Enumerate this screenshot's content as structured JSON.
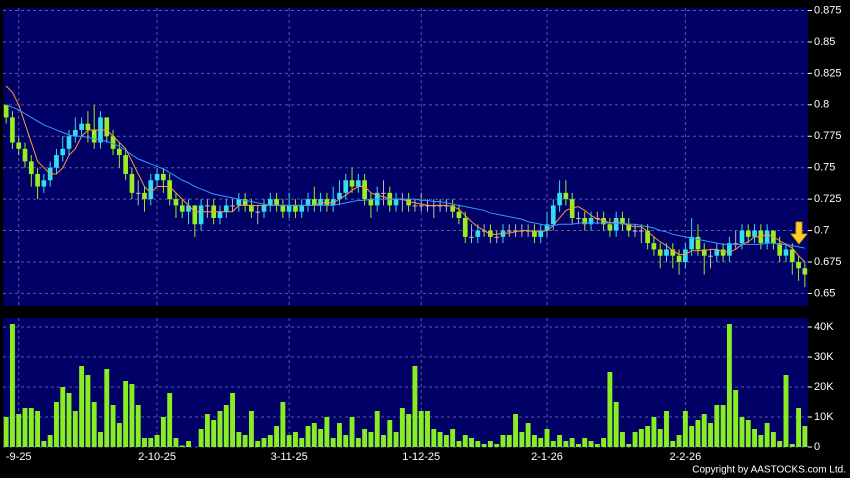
{
  "chart_data": {
    "type": "candlestick",
    "up_color": "#33ddee",
    "down_color": "#99ee22",
    "flat_color": "#bbbbbb",
    "categories": [
      null,
      null,
      "-9-25",
      null,
      null,
      null,
      null,
      null,
      null,
      null,
      null,
      null,
      null,
      null,
      null,
      null,
      null,
      null,
      null,
      null,
      null,
      null,
      null,
      null,
      "2-10-25",
      null,
      null,
      null,
      null,
      null,
      null,
      null,
      null,
      null,
      null,
      null,
      null,
      null,
      null,
      null,
      null,
      null,
      null,
      null,
      null,
      "3-11-25",
      null,
      null,
      null,
      null,
      null,
      null,
      null,
      null,
      null,
      null,
      null,
      null,
      null,
      null,
      null,
      null,
      null,
      null,
      null,
      null,
      "1-12-25",
      null,
      null,
      null,
      null,
      null,
      null,
      null,
      null,
      null,
      null,
      null,
      null,
      null,
      null,
      null,
      null,
      null,
      null,
      null,
      "2-1-26",
      null,
      null,
      null,
      null,
      null,
      null,
      null,
      null,
      null,
      null,
      null,
      null,
      null,
      null,
      null,
      null,
      null,
      null,
      null,
      null,
      null,
      "2-2-26",
      null,
      null,
      null,
      null,
      null,
      null,
      null,
      null,
      null,
      null,
      null,
      null,
      null,
      null,
      null,
      null,
      null,
      null,
      null
    ],
    "open": [
      0.8,
      0.79,
      0.77,
      0.765,
      0.755,
      0.745,
      0.735,
      0.74,
      0.75,
      0.76,
      0.765,
      0.775,
      0.78,
      0.785,
      0.78,
      0.77,
      0.79,
      0.775,
      0.765,
      0.76,
      0.745,
      0.73,
      0.73,
      0.725,
      0.74,
      0.745,
      0.74,
      0.725,
      0.72,
      0.715,
      0.72,
      0.705,
      0.72,
      0.72,
      0.71,
      0.715,
      0.72,
      0.72,
      0.725,
      0.72,
      0.715,
      0.715,
      0.72,
      0.725,
      0.72,
      0.715,
      0.72,
      0.715,
      0.72,
      0.725,
      0.72,
      0.725,
      0.72,
      0.725,
      0.73,
      0.74,
      0.735,
      0.74,
      0.725,
      0.72,
      0.73,
      0.73,
      0.72,
      0.725,
      0.725,
      0.72,
      0.72,
      0.72,
      0.72,
      0.72,
      0.72,
      0.72,
      0.715,
      0.71,
      0.695,
      0.695,
      0.7,
      0.7,
      0.695,
      0.695,
      0.7,
      0.7,
      0.7,
      0.7,
      0.7,
      0.695,
      0.7,
      0.705,
      0.72,
      0.73,
      0.725,
      0.71,
      0.71,
      0.705,
      0.71,
      0.71,
      0.705,
      0.7,
      0.71,
      0.705,
      0.7,
      0.7,
      0.7,
      0.69,
      0.685,
      0.68,
      0.685,
      0.68,
      0.675,
      0.685,
      0.695,
      0.685,
      0.68,
      0.68,
      0.685,
      0.68,
      0.69,
      0.69,
      0.7,
      0.695,
      0.7,
      0.69,
      0.7,
      0.69,
      0.68,
      0.685,
      0.675,
      0.67
    ],
    "high": [
      0.8,
      0.795,
      0.775,
      0.77,
      0.76,
      0.75,
      0.745,
      0.755,
      0.765,
      0.775,
      0.78,
      0.79,
      0.79,
      0.795,
      0.8,
      0.795,
      0.79,
      0.78,
      0.77,
      0.765,
      0.75,
      0.74,
      0.735,
      0.745,
      0.75,
      0.75,
      0.745,
      0.73,
      0.725,
      0.725,
      0.72,
      0.725,
      0.725,
      0.725,
      0.72,
      0.725,
      0.725,
      0.73,
      0.73,
      0.725,
      0.72,
      0.725,
      0.73,
      0.73,
      0.725,
      0.73,
      0.725,
      0.725,
      0.73,
      0.735,
      0.73,
      0.73,
      0.735,
      0.74,
      0.745,
      0.75,
      0.745,
      0.745,
      0.73,
      0.735,
      0.74,
      0.735,
      0.73,
      0.73,
      0.73,
      0.725,
      0.73,
      0.725,
      0.725,
      0.725,
      0.725,
      0.725,
      0.72,
      0.715,
      0.705,
      0.705,
      0.705,
      0.705,
      0.7,
      0.705,
      0.705,
      0.705,
      0.705,
      0.705,
      0.705,
      0.705,
      0.715,
      0.725,
      0.74,
      0.74,
      0.73,
      0.715,
      0.715,
      0.715,
      0.715,
      0.715,
      0.71,
      0.715,
      0.715,
      0.71,
      0.705,
      0.705,
      0.705,
      0.695,
      0.69,
      0.69,
      0.69,
      0.685,
      0.69,
      0.71,
      0.705,
      0.69,
      0.685,
      0.69,
      0.69,
      0.695,
      0.7,
      0.705,
      0.705,
      0.705,
      0.705,
      0.705,
      0.7,
      0.695,
      0.69,
      0.69,
      0.68,
      0.675
    ],
    "low": [
      0.785,
      0.765,
      0.76,
      0.75,
      0.735,
      0.725,
      0.73,
      0.735,
      0.745,
      0.755,
      0.76,
      0.77,
      0.775,
      0.77,
      0.765,
      0.765,
      0.77,
      0.76,
      0.75,
      0.74,
      0.725,
      0.72,
      0.715,
      0.72,
      0.735,
      0.73,
      0.72,
      0.71,
      0.71,
      0.705,
      0.695,
      0.7,
      0.71,
      0.705,
      0.705,
      0.71,
      0.715,
      0.715,
      0.715,
      0.71,
      0.705,
      0.71,
      0.715,
      0.715,
      0.71,
      0.71,
      0.71,
      0.71,
      0.715,
      0.715,
      0.715,
      0.715,
      0.715,
      0.72,
      0.725,
      0.73,
      0.73,
      0.72,
      0.71,
      0.715,
      0.72,
      0.715,
      0.715,
      0.715,
      0.715,
      0.715,
      0.715,
      0.715,
      0.71,
      0.715,
      0.715,
      0.71,
      0.705,
      0.69,
      0.69,
      0.69,
      0.695,
      0.69,
      0.69,
      0.69,
      0.695,
      0.695,
      0.695,
      0.695,
      0.69,
      0.69,
      0.695,
      0.7,
      0.715,
      0.72,
      0.705,
      0.705,
      0.7,
      0.7,
      0.705,
      0.7,
      0.695,
      0.695,
      0.7,
      0.695,
      0.695,
      0.69,
      0.685,
      0.68,
      0.67,
      0.675,
      0.67,
      0.665,
      0.67,
      0.68,
      0.68,
      0.665,
      0.67,
      0.675,
      0.675,
      0.675,
      0.685,
      0.685,
      0.69,
      0.69,
      0.685,
      0.685,
      0.685,
      0.675,
      0.675,
      0.665,
      0.66,
      0.655
    ],
    "close": [
      0.79,
      0.77,
      0.765,
      0.755,
      0.745,
      0.735,
      0.74,
      0.75,
      0.76,
      0.765,
      0.775,
      0.78,
      0.785,
      0.78,
      0.77,
      0.79,
      0.775,
      0.765,
      0.76,
      0.745,
      0.73,
      0.73,
      0.725,
      0.74,
      0.745,
      0.74,
      0.725,
      0.72,
      0.715,
      0.72,
      0.705,
      0.72,
      0.72,
      0.71,
      0.715,
      0.72,
      0.72,
      0.725,
      0.72,
      0.715,
      0.715,
      0.72,
      0.725,
      0.72,
      0.715,
      0.72,
      0.715,
      0.72,
      0.725,
      0.72,
      0.725,
      0.72,
      0.725,
      0.73,
      0.74,
      0.735,
      0.74,
      0.725,
      0.72,
      0.73,
      0.73,
      0.72,
      0.725,
      0.725,
      0.72,
      0.72,
      0.72,
      0.72,
      0.72,
      0.72,
      0.72,
      0.715,
      0.71,
      0.695,
      0.695,
      0.7,
      0.7,
      0.695,
      0.695,
      0.7,
      0.7,
      0.7,
      0.7,
      0.7,
      0.695,
      0.7,
      0.705,
      0.72,
      0.73,
      0.725,
      0.71,
      0.71,
      0.705,
      0.71,
      0.71,
      0.705,
      0.7,
      0.71,
      0.705,
      0.7,
      0.7,
      0.7,
      0.69,
      0.685,
      0.68,
      0.685,
      0.68,
      0.675,
      0.685,
      0.695,
      0.685,
      0.68,
      0.68,
      0.685,
      0.68,
      0.69,
      0.69,
      0.7,
      0.695,
      0.7,
      0.69,
      0.7,
      0.69,
      0.68,
      0.685,
      0.675,
      0.67,
      0.665
    ],
    "series": [
      {
        "color": "#ff9933",
        "values": [
          0.815,
          0.81,
          0.8,
          0.785,
          0.77,
          0.755,
          0.75,
          0.745,
          0.745,
          0.75,
          0.76,
          0.765,
          0.775,
          0.78,
          0.78,
          0.78,
          0.78,
          0.775,
          0.77,
          0.765,
          0.755,
          0.745,
          0.735,
          0.73,
          0.735,
          0.735,
          0.735,
          0.73,
          0.725,
          0.72,
          0.715,
          0.715,
          0.715,
          0.715,
          0.715,
          0.715,
          0.715,
          0.72,
          0.72,
          0.72,
          0.72,
          0.72,
          0.72,
          0.72,
          0.72,
          0.72,
          0.72,
          0.72,
          0.72,
          0.72,
          0.722,
          0.722,
          0.722,
          0.725,
          0.728,
          0.732,
          0.735,
          0.735,
          0.73,
          0.728,
          0.727,
          0.725,
          0.725,
          0.725,
          0.723,
          0.722,
          0.721,
          0.72,
          0.72,
          0.72,
          0.72,
          0.719,
          0.717,
          0.712,
          0.707,
          0.703,
          0.7,
          0.697,
          0.697,
          0.698,
          0.698,
          0.699,
          0.7,
          0.7,
          0.699,
          0.699,
          0.7,
          0.704,
          0.71,
          0.716,
          0.718,
          0.719,
          0.716,
          0.712,
          0.709,
          0.708,
          0.706,
          0.707,
          0.706,
          0.704,
          0.703,
          0.703,
          0.699,
          0.695,
          0.691,
          0.688,
          0.684,
          0.681,
          0.681,
          0.684,
          0.684,
          0.684,
          0.685,
          0.685,
          0.683,
          0.683,
          0.685,
          0.689,
          0.691,
          0.695,
          0.695,
          0.697,
          0.695,
          0.692,
          0.689,
          0.686,
          0.68,
          0.675
        ]
      },
      {
        "color": "#3399ff",
        "values": [
          0.8,
          0.798,
          0.796,
          0.793,
          0.79,
          0.787,
          0.784,
          0.782,
          0.78,
          0.778,
          0.776,
          0.775,
          0.775,
          0.774,
          0.773,
          0.772,
          0.771,
          0.769,
          0.767,
          0.764,
          0.76,
          0.757,
          0.755,
          0.753,
          0.751,
          0.749,
          0.746,
          0.743,
          0.74,
          0.738,
          0.735,
          0.733,
          0.731,
          0.729,
          0.728,
          0.727,
          0.726,
          0.725,
          0.724,
          0.723,
          0.722,
          0.721,
          0.72,
          0.72,
          0.72,
          0.72,
          0.72,
          0.72,
          0.72,
          0.72,
          0.72,
          0.72,
          0.72,
          0.721,
          0.722,
          0.723,
          0.724,
          0.724,
          0.725,
          0.725,
          0.725,
          0.725,
          0.725,
          0.725,
          0.725,
          0.725,
          0.724,
          0.724,
          0.723,
          0.723,
          0.722,
          0.721,
          0.72,
          0.719,
          0.718,
          0.717,
          0.716,
          0.714,
          0.713,
          0.712,
          0.711,
          0.71,
          0.709,
          0.707,
          0.706,
          0.705,
          0.704,
          0.704,
          0.705,
          0.705,
          0.705,
          0.706,
          0.706,
          0.706,
          0.706,
          0.706,
          0.706,
          0.706,
          0.706,
          0.705,
          0.705,
          0.704,
          0.703,
          0.702,
          0.7,
          0.699,
          0.697,
          0.696,
          0.695,
          0.694,
          0.693,
          0.692,
          0.691,
          0.69,
          0.689,
          0.689,
          0.689,
          0.689,
          0.689,
          0.689,
          0.689,
          0.69,
          0.69,
          0.689,
          0.689,
          0.688,
          0.687,
          0.686
        ]
      }
    ],
    "ylim": [
      0.64,
      0.877
    ],
    "yticks": [
      0.65,
      0.675,
      0.7,
      0.725,
      0.75,
      0.775,
      0.8,
      0.825,
      0.85,
      0.875
    ],
    "grid": true,
    "volume": {
      "type": "bar",
      "color": "#88ee22",
      "values": [
        10000,
        41000,
        11000,
        13000,
        13000,
        12000,
        2000,
        4000,
        15000,
        20000,
        18000,
        12000,
        27000,
        24000,
        15000,
        5000,
        26000,
        14000,
        8000,
        22000,
        21000,
        14000,
        3000,
        3000,
        4000,
        10000,
        18000,
        3000,
        500,
        2000,
        0,
        6000,
        11000,
        9000,
        12000,
        14000,
        18000,
        5000,
        4000,
        12000,
        2000,
        3000,
        4000,
        7000,
        15000,
        4000,
        5000,
        3000,
        7000,
        8000,
        6000,
        10000,
        3000,
        8000,
        4000,
        10000,
        3000,
        6000,
        5000,
        12000,
        4000,
        9000,
        5000,
        13000,
        11000,
        27000,
        12000,
        12000,
        6000,
        5000,
        4000,
        6000,
        2000,
        4000,
        3000,
        2000,
        1000,
        2000,
        1000,
        4000,
        4000,
        11000,
        5000,
        8000,
        4000,
        3000,
        6000,
        2000,
        4000,
        2000,
        3000,
        1000,
        3000,
        2000,
        1000,
        3000,
        25000,
        15000,
        5000,
        1000,
        5000,
        6000,
        7000,
        10000,
        6000,
        12000,
        2000,
        4000,
        12000,
        7000,
        9000,
        11000,
        8000,
        14000,
        14000,
        41000,
        19000,
        10000,
        9000,
        6000,
        4000,
        8000,
        5000,
        2000,
        24000,
        1000,
        13000,
        7000
      ],
      "ylim": [
        0,
        43000
      ],
      "yticks": [
        0,
        {
          "value": 10000,
          "label": "10K"
        },
        {
          "value": 20000,
          "label": "20K"
        },
        {
          "value": 30000,
          "label": "30K"
        },
        {
          "value": 40000,
          "label": "40K"
        }
      ]
    },
    "copyright": "Copyright by AASTOCKS.com Ltd."
  }
}
